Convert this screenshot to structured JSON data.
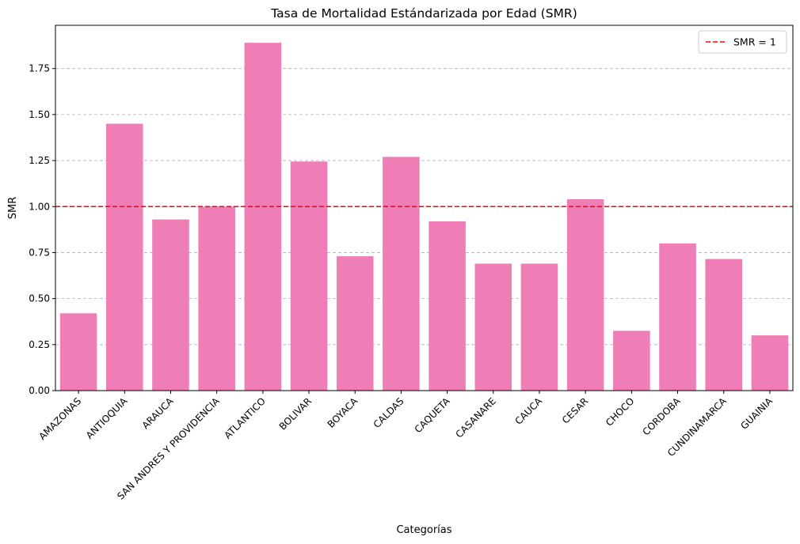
{
  "chart_data": {
    "type": "bar",
    "title": "Tasa de Mortalidad Estándarizada por Edad (SMR)",
    "xlabel": "Categorías",
    "ylabel": "SMR",
    "categories": [
      "AMAZONAS",
      "ANTIOQUIA",
      "ARAUCA",
      "SAN ANDRES Y PROVIDENCIA",
      "ATLANTICO",
      "BOLIVAR",
      "BOYACA",
      "CALDAS",
      "CAQUETA",
      "CASANARE",
      "CAUCA",
      "CESAR",
      "CHOCO",
      "CORDOBA",
      "CUNDINAMARCA",
      "GUAINIA"
    ],
    "values": [
      0.42,
      1.45,
      0.93,
      1.0,
      1.89,
      1.245,
      0.73,
      1.27,
      0.92,
      0.69,
      0.69,
      1.04,
      0.325,
      0.8,
      0.715,
      0.3
    ],
    "yticks": [
      0.0,
      0.25,
      0.5,
      0.75,
      1.0,
      1.25,
      1.5,
      1.75
    ],
    "ytick_labels": [
      "0.00",
      "0.25",
      "0.50",
      "0.75",
      "1.00",
      "1.25",
      "1.50",
      "1.75"
    ],
    "ylim": [
      0,
      1.985
    ],
    "grid": "y-dashed",
    "bar_color": "#ee7eb5",
    "reference_line": {
      "value": 1.0,
      "color": "#ff0000",
      "label": "SMR = 1"
    },
    "legend": {
      "position": "top-right",
      "entries": [
        "SMR = 1"
      ]
    }
  }
}
